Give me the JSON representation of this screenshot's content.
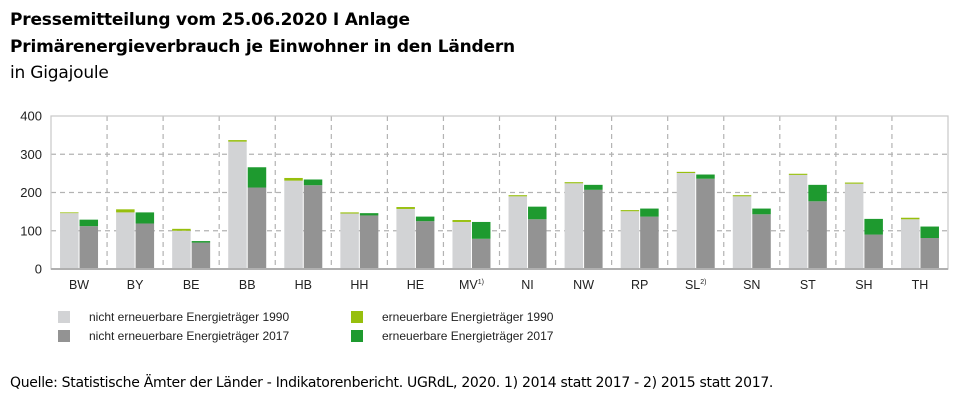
{
  "header": {
    "title_line1": "Pressemitteilung vom 25.06.2020 I Anlage",
    "title_line2": "Primärenergieverbrauch je Einwohner in den Ländern",
    "subtitle": "in Gigajoule"
  },
  "colors": {
    "nonrenewable_1990": "#d2d3d5",
    "renewable_1990": "#97bf0d",
    "nonrenewable_2017": "#939393",
    "renewable_2017": "#1e9a2f",
    "grid": "#b3b3b3",
    "frame": "#c8c8c8"
  },
  "chart_data": {
    "type": "bar",
    "stacked": true,
    "grouped": true,
    "title": "Primärenergieverbrauch je Einwohner in den Ländern",
    "ylabel": "Gigajoule",
    "xlabel": "",
    "ylim": [
      0,
      400
    ],
    "yticks": [
      0,
      100,
      200,
      300,
      400
    ],
    "grid": true,
    "legend_position": "bottom",
    "categories": [
      "BW",
      "BY",
      "BE",
      "BB",
      "HB",
      "HH",
      "HE",
      "MV",
      "NI",
      "NW",
      "RP",
      "SL",
      "SN",
      "ST",
      "SH",
      "TH"
    ],
    "category_superscripts": [
      "",
      "",
      "",
      "",
      "",
      "",
      "",
      "1)",
      "",
      "",
      "",
      "2)",
      "",
      "",
      "",
      ""
    ],
    "series": [
      {
        "name": "nicht erneuerbare Energieträger 1990",
        "group": "1990",
        "color_key": "nonrenewable_1990",
        "values": [
          146,
          148,
          100,
          333,
          231,
          145,
          157,
          123,
          190,
          224,
          151,
          251,
          190,
          246,
          223,
          130
        ]
      },
      {
        "name": "erneuerbare Energieträger 1990",
        "group": "1990",
        "color_key": "renewable_1990",
        "values": [
          2,
          8,
          5,
          4,
          7,
          3,
          5,
          5,
          3,
          3,
          3,
          3,
          3,
          3,
          3,
          4
        ]
      },
      {
        "name": "nicht erneuerbare Energieträger 2017",
        "group": "2017",
        "color_key": "nonrenewable_2017",
        "values": [
          112,
          119,
          69,
          213,
          219,
          140,
          125,
          79,
          130,
          207,
          137,
          236,
          143,
          177,
          90,
          81
        ]
      },
      {
        "name": "erneuerbare Energieträger 2017",
        "group": "2017",
        "color_key": "renewable_2017",
        "values": [
          17,
          29,
          4,
          53,
          15,
          6,
          12,
          44,
          33,
          13,
          21,
          11,
          15,
          43,
          41,
          30
        ]
      }
    ]
  },
  "legend": [
    {
      "label": "nicht erneuerbare Energieträger 1990",
      "color_key": "nonrenewable_1990"
    },
    {
      "label": "nicht erneuerbare Energieträger 2017",
      "color_key": "nonrenewable_2017"
    },
    {
      "label": "erneuerbare Energieträger 1990",
      "color_key": "renewable_1990"
    },
    {
      "label": "erneuerbare Energieträger 2017",
      "color_key": "renewable_2017"
    }
  ],
  "footnote": "Quelle: Statistische Ämter der Länder - Indikatorenbericht. UGRdL, 2020. 1) 2014 statt 2017 - 2) 2015 statt 2017."
}
